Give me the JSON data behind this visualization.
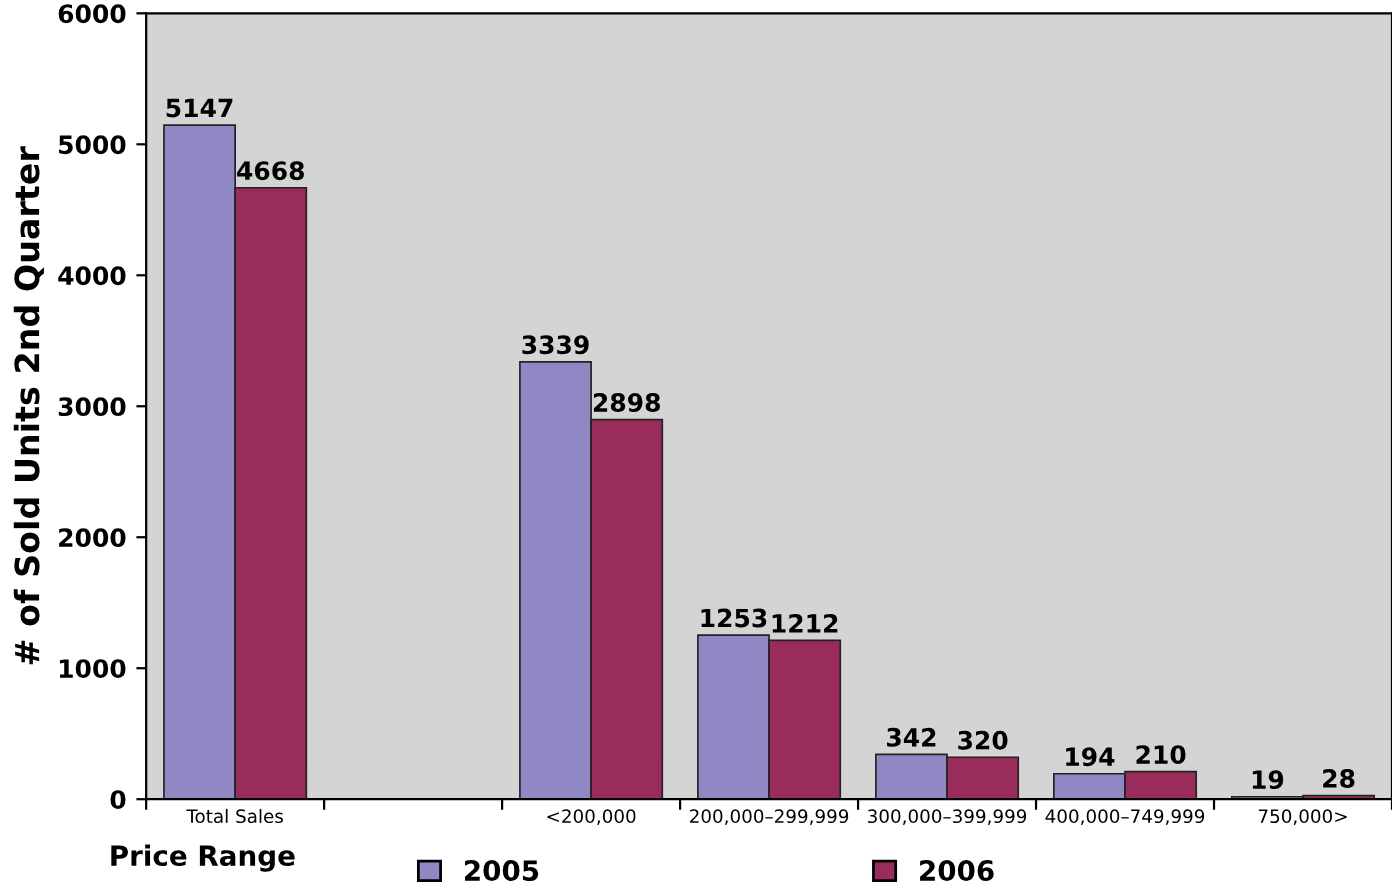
{
  "chart_data": {
    "type": "bar",
    "ylabel": "# of Sold Units 2nd Quarter",
    "xlabel": "Price Range",
    "categories": [
      "Total Sales",
      null,
      "<200,000",
      "200,000–299,999",
      "300,000–399,999",
      "400,000–749,999",
      "750,000>"
    ],
    "series": [
      {
        "name": "2005",
        "color": "#9088c4",
        "values": [
          5147,
          null,
          3339,
          1253,
          342,
          194,
          19
        ]
      },
      {
        "name": "2006",
        "color": "#9a2c5c",
        "values": [
          4668,
          null,
          2898,
          1212,
          320,
          210,
          28
        ]
      }
    ],
    "ylim": [
      0,
      6000
    ],
    "yticks": [
      0,
      1000,
      2000,
      3000,
      4000,
      5000,
      6000
    ],
    "data_labels": true,
    "legend": "bottom",
    "grid": false
  }
}
